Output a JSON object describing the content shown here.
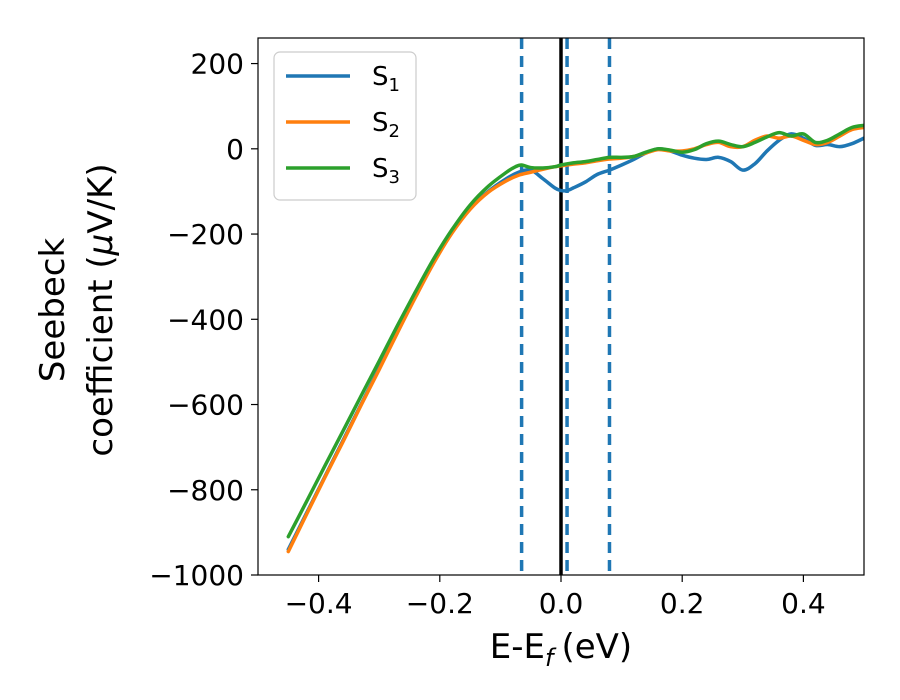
{
  "chart_data": {
    "type": "line",
    "xlabel": "E-E",
    "xlabel_sub": "f",
    "xlabel_unit": "(eV)",
    "ylabel_line1": "Seebeck",
    "ylabel_line2": "coefficient  (",
    "ylabel_mu": "μ",
    "ylabel_unit": "V/K)",
    "xlim": [
      -0.5,
      0.5
    ],
    "ylim": [
      -1000,
      260
    ],
    "xticks": [
      -0.4,
      -0.2,
      0.0,
      0.2,
      0.4
    ],
    "xtick_labels": [
      "−0.4",
      "−0.2",
      "0.0",
      "0.2",
      "0.4"
    ],
    "yticks": [
      -1000,
      -800,
      -600,
      -400,
      -200,
      0,
      200
    ],
    "ytick_labels": [
      "−1000",
      "−800",
      "−600",
      "−400",
      "−200",
      "0",
      "200"
    ],
    "legend_position": "upper-left",
    "grid": false,
    "vlines": [
      {
        "x": 0.0,
        "style": "solid",
        "color": "#000000"
      },
      {
        "x": -0.065,
        "style": "dashed",
        "color": "#1f77b4"
      },
      {
        "x": 0.01,
        "style": "dashed",
        "color": "#1f77b4"
      },
      {
        "x": 0.08,
        "style": "dashed",
        "color": "#1f77b4"
      }
    ],
    "series": [
      {
        "name": "S",
        "sub": "1",
        "color": "#1f77b4",
        "x": [
          -0.45,
          -0.42,
          -0.39,
          -0.36,
          -0.33,
          -0.3,
          -0.27,
          -0.24,
          -0.21,
          -0.18,
          -0.15,
          -0.12,
          -0.09,
          -0.07,
          -0.05,
          -0.03,
          -0.01,
          0.0,
          0.01,
          0.02,
          0.04,
          0.06,
          0.08,
          0.1,
          0.12,
          0.14,
          0.16,
          0.18,
          0.2,
          0.22,
          0.24,
          0.26,
          0.28,
          0.3,
          0.32,
          0.34,
          0.36,
          0.38,
          0.4,
          0.42,
          0.44,
          0.46,
          0.48,
          0.5
        ],
        "y": [
          -940,
          -855,
          -770,
          -685,
          -600,
          -515,
          -430,
          -345,
          -265,
          -195,
          -140,
          -100,
          -70,
          -55,
          -50,
          -70,
          -92,
          -98,
          -98,
          -92,
          -78,
          -60,
          -50,
          -38,
          -25,
          -10,
          0,
          -5,
          -15,
          -22,
          -25,
          -20,
          -30,
          -50,
          -35,
          -5,
          20,
          35,
          25,
          8,
          10,
          5,
          12,
          25
        ]
      },
      {
        "name": "S",
        "sub": "2",
        "color": "#ff7f0e",
        "x": [
          -0.45,
          -0.42,
          -0.39,
          -0.36,
          -0.33,
          -0.3,
          -0.27,
          -0.24,
          -0.21,
          -0.18,
          -0.15,
          -0.12,
          -0.09,
          -0.07,
          -0.05,
          -0.03,
          -0.01,
          0.0,
          0.02,
          0.04,
          0.06,
          0.08,
          0.1,
          0.12,
          0.14,
          0.16,
          0.18,
          0.2,
          0.22,
          0.24,
          0.26,
          0.28,
          0.3,
          0.32,
          0.34,
          0.36,
          0.38,
          0.4,
          0.42,
          0.44,
          0.46,
          0.48,
          0.5
        ],
        "y": [
          -945,
          -858,
          -772,
          -688,
          -602,
          -518,
          -432,
          -348,
          -268,
          -198,
          -142,
          -102,
          -75,
          -62,
          -55,
          -48,
          -42,
          -40,
          -36,
          -33,
          -28,
          -24,
          -22,
          -18,
          -10,
          -2,
          -5,
          -5,
          0,
          10,
          15,
          5,
          5,
          20,
          30,
          25,
          30,
          20,
          10,
          15,
          30,
          45,
          50
        ]
      },
      {
        "name": "S",
        "sub": "3",
        "color": "#2ca02c",
        "x": [
          -0.45,
          -0.42,
          -0.39,
          -0.36,
          -0.33,
          -0.3,
          -0.27,
          -0.24,
          -0.21,
          -0.18,
          -0.15,
          -0.12,
          -0.09,
          -0.075,
          -0.065,
          -0.05,
          -0.03,
          -0.01,
          0.0,
          0.02,
          0.04,
          0.06,
          0.08,
          0.1,
          0.12,
          0.14,
          0.16,
          0.18,
          0.2,
          0.22,
          0.24,
          0.26,
          0.28,
          0.3,
          0.32,
          0.34,
          0.36,
          0.38,
          0.4,
          0.42,
          0.44,
          0.46,
          0.48,
          0.5
        ],
        "y": [
          -910,
          -828,
          -745,
          -663,
          -580,
          -498,
          -415,
          -335,
          -258,
          -190,
          -132,
          -88,
          -55,
          -42,
          -38,
          -44,
          -45,
          -42,
          -38,
          -33,
          -30,
          -25,
          -20,
          -20,
          -18,
          -8,
          0,
          -3,
          -8,
          -2,
          12,
          18,
          10,
          5,
          15,
          28,
          38,
          30,
          35,
          15,
          20,
          35,
          50,
          55
        ]
      }
    ]
  }
}
